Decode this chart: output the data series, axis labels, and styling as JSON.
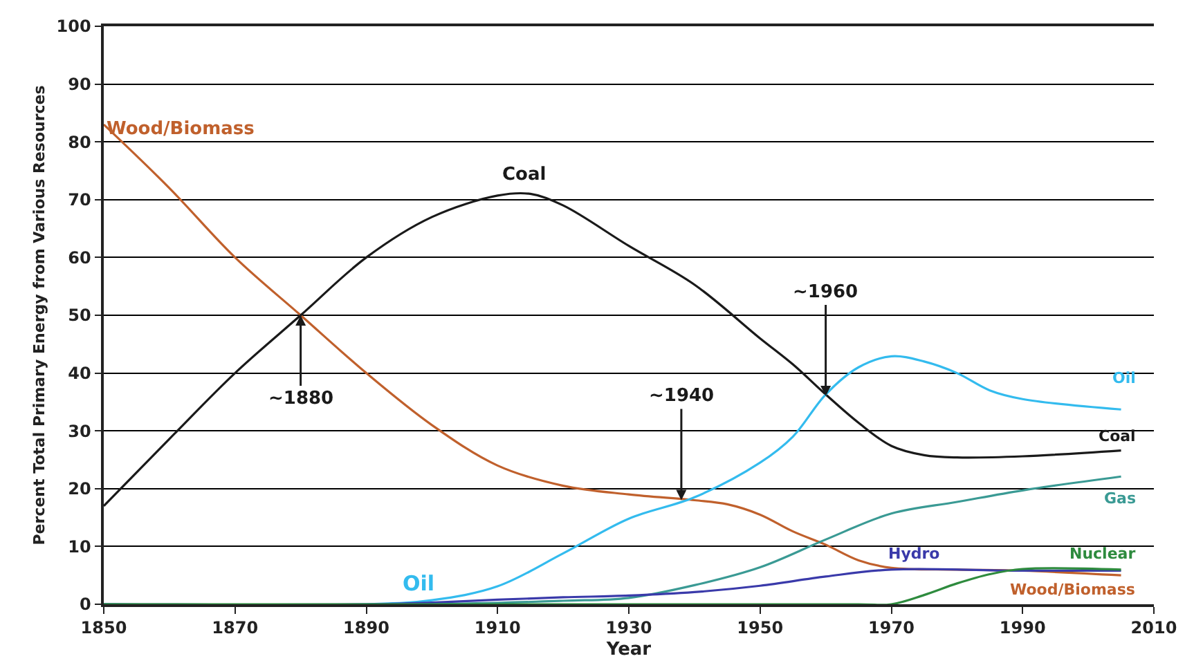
{
  "chart_data": {
    "type": "line",
    "xlabel": "Year",
    "ylabel": "Percent Total Primary Energy from Various Resources",
    "xlim": [
      1850,
      2010
    ],
    "xticks": [
      1850,
      1870,
      1890,
      1910,
      1930,
      1950,
      1970,
      1990,
      2010
    ],
    "ylim": [
      0,
      100
    ],
    "yticks": [
      0,
      10,
      20,
      30,
      40,
      50,
      60,
      70,
      80,
      90,
      100
    ],
    "grid": "y",
    "legend": false,
    "marker": "none",
    "line_style": "solid",
    "series": [
      {
        "name": "Wood/Biomass",
        "color": "#c0602c",
        "x": [
          1850,
          1860,
          1870,
          1880,
          1890,
          1900,
          1910,
          1920,
          1930,
          1940,
          1945,
          1950,
          1955,
          1960,
          1965,
          1970,
          1980,
          1990,
          2005
        ],
        "values": [
          83,
          72,
          60,
          50,
          40,
          31,
          24,
          20.5,
          19,
          18,
          17.3,
          15.5,
          12.6,
          10.3,
          7.6,
          6.3,
          6,
          5.8,
          5
        ]
      },
      {
        "name": "Coal",
        "color": "#1a1a1a",
        "x": [
          1850,
          1860,
          1870,
          1880,
          1890,
          1900,
          1910,
          1915,
          1920,
          1930,
          1940,
          1950,
          1955,
          1960,
          1965,
          1970,
          1975,
          1980,
          1990,
          2005
        ],
        "values": [
          17,
          28.6,
          40,
          50,
          60,
          67,
          70.7,
          71,
          69,
          62,
          55.3,
          46,
          41.5,
          36.3,
          31.4,
          27.4,
          25.8,
          25.4,
          25.6,
          26.6
        ]
      },
      {
        "name": "Oil",
        "color": "#33bbee",
        "x": [
          1850,
          1890,
          1900,
          1910,
          1920,
          1930,
          1940,
          1950,
          1955,
          1960,
          1965,
          1970,
          1975,
          1980,
          1985,
          1990,
          2005
        ],
        "values": [
          0,
          0,
          0.7,
          3.1,
          8.8,
          14.8,
          18.5,
          24.5,
          29,
          36.3,
          41,
          42.9,
          42,
          40,
          37,
          35.5,
          33.7
        ]
      },
      {
        "name": "Gas",
        "color": "#3a9a94",
        "x": [
          1850,
          1900,
          1920,
          1930,
          1940,
          1950,
          1960,
          1970,
          1980,
          1990,
          2005
        ],
        "values": [
          0,
          0,
          0.6,
          1.1,
          3.3,
          6.4,
          11.2,
          15.7,
          17.7,
          19.7,
          22.1
        ]
      },
      {
        "name": "Hydro",
        "color": "#3a3aaa",
        "x": [
          1850,
          1890,
          1900,
          1910,
          1920,
          1930,
          1940,
          1950,
          1960,
          1970,
          1990,
          2005
        ],
        "values": [
          0,
          0,
          0.3,
          0.8,
          1.2,
          1.5,
          2.1,
          3.2,
          4.8,
          6,
          5.8,
          5.8
        ]
      },
      {
        "name": "Nuclear",
        "color": "#2e8b3e",
        "x": [
          1850,
          1965,
          1970,
          1975,
          1980,
          1985,
          1990,
          2005
        ],
        "values": [
          0,
          0,
          0,
          1.6,
          3.6,
          5.2,
          6.1,
          6
        ]
      }
    ],
    "annotations": [
      "Wood/Biomass",
      "Coal",
      "Oil",
      {
        "text": "~1880",
        "x": 1880,
        "y": 50
      },
      {
        "text": "~1940",
        "x": 1938,
        "y": 18
      },
      {
        "text": "~1960",
        "x": 1960,
        "y": 36
      }
    ]
  }
}
